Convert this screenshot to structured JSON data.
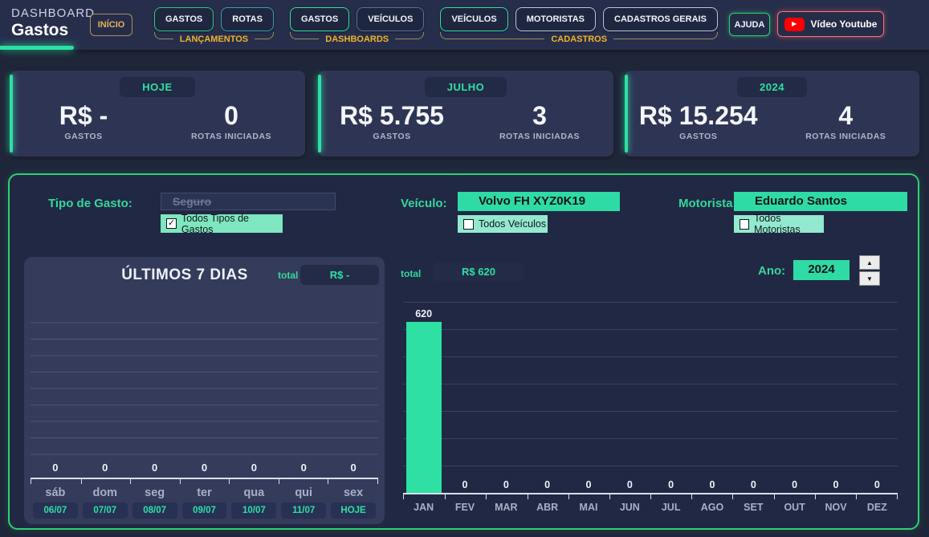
{
  "header": {
    "app_title": "DASHBOARD",
    "page_title": "Gastos",
    "inicio_label": "INÍCIO",
    "groups": [
      {
        "label": "LANÇAMENTOS",
        "buttons": [
          {
            "label": "GASTOS",
            "accent": "#2ec487"
          },
          {
            "label": "ROTAS",
            "accent": "#3f9bb0"
          }
        ]
      },
      {
        "label": "DASHBOARDS",
        "buttons": [
          {
            "label": "GASTOS",
            "accent": "#2ee0a0"
          },
          {
            "label": "VEÍCULOS",
            "accent": "#5b6f96"
          }
        ]
      },
      {
        "label": "CADASTROS",
        "buttons": [
          {
            "label": "VEÍCULOS",
            "accent": "#2ee0a0"
          },
          {
            "label": "MOTORISTAS",
            "accent": "#bac6da"
          },
          {
            "label": "CADASTROS GERAIS",
            "accent": "#bac6da"
          }
        ]
      }
    ],
    "ajuda_label": "AJUDA",
    "youtube_label": "Vídeo Youtube"
  },
  "kpi_cards": [
    {
      "period": "HOJE",
      "gastos_value": "R$ -",
      "gastos_label": "GASTOS",
      "rotas_value": "0",
      "rotas_label": "ROTAS INICIADAS"
    },
    {
      "period": "JULHO",
      "gastos_value": "R$ 5.755",
      "gastos_label": "GASTOS",
      "rotas_value": "3",
      "rotas_label": "ROTAS INICIADAS"
    },
    {
      "period": "2024",
      "gastos_value": "R$ 15.254",
      "gastos_label": "GASTOS",
      "rotas_value": "4",
      "rotas_label": "ROTAS INICIADAS"
    }
  ],
  "filters": {
    "tipo_gasto": {
      "label": "Tipo de Gasto:",
      "value": "Seguro",
      "checkbox_label": "Todos Tipos de Gastos",
      "checked": true
    },
    "veiculo": {
      "label": "Veículo:",
      "value": "Volvo FH XYZ0K19",
      "checkbox_label": "Todos Veículos",
      "checked": false
    },
    "motorista": {
      "label": "Motorista:",
      "value": "Eduardo Santos",
      "checkbox_label": "Todos Motoristas",
      "checked": false
    },
    "ano": {
      "label": "Ano:",
      "value": "2024"
    }
  },
  "chart_data": [
    {
      "type": "bar",
      "title": "ÚLTIMOS 7 DIAS",
      "total_label": "total",
      "total_value": "R$ -",
      "categories": [
        "sáb",
        "dom",
        "seg",
        "ter",
        "qua",
        "qui",
        "sex"
      ],
      "dates": [
        "06/07",
        "07/07",
        "08/07",
        "09/07",
        "10/07",
        "11/07",
        "HOJE"
      ],
      "values": [
        0,
        0,
        0,
        0,
        0,
        0,
        0
      ],
      "ylim": [
        0,
        650
      ],
      "grid": true,
      "bar_color": "#2ee0a4"
    },
    {
      "type": "bar",
      "title": "",
      "total_label": "total",
      "total_value": "R$ 620",
      "categories": [
        "JAN",
        "FEV",
        "MAR",
        "ABR",
        "MAI",
        "JUN",
        "JUL",
        "AGO",
        "SET",
        "OUT",
        "NOV",
        "DEZ"
      ],
      "values": [
        620,
        0,
        0,
        0,
        0,
        0,
        0,
        0,
        0,
        0,
        0,
        0
      ],
      "ylim": [
        0,
        650
      ],
      "grid": true,
      "bar_color": "#2ee0a4"
    }
  ],
  "icons": {
    "check": "✓",
    "spinner_up": "▲",
    "spinner_down": "▼",
    "youtube_play": "▶"
  },
  "colors": {
    "accent_green": "#2ee0a4",
    "panel_border_green": "#2fd06f",
    "gold": "#f0b42a",
    "youtube_red": "#ff0000",
    "card_bg": "#2e3554",
    "page_bg": "#1f2639"
  }
}
